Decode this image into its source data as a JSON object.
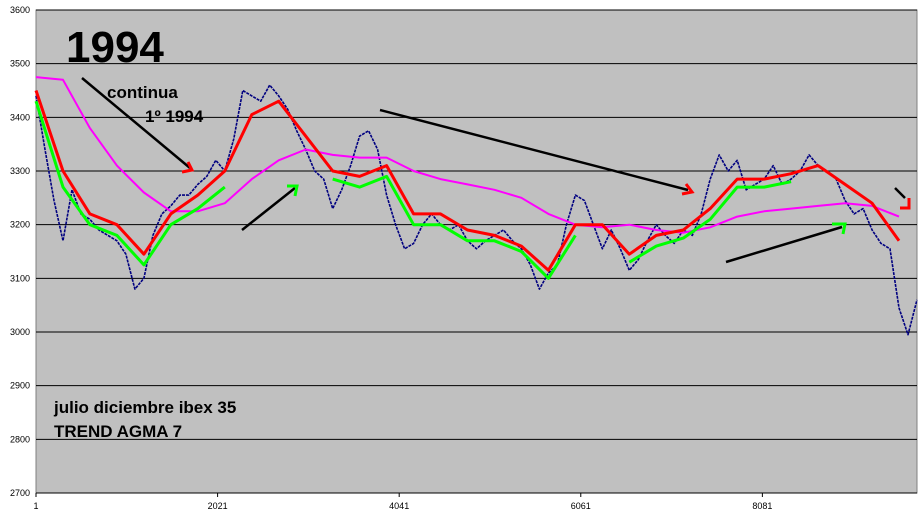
{
  "chart_data": {
    "type": "line",
    "title": "1994",
    "annotations": [
      "continua",
      "1º 1994",
      "julio diciembre ibex 35",
      "TREND AGMA 7"
    ],
    "xlim": [
      1,
      9801
    ],
    "xticks": [
      1,
      2021,
      4041,
      6061,
      8081
    ],
    "ylim": [
      2700,
      3600
    ],
    "yticks": [
      2700,
      2800,
      2900,
      3000,
      3100,
      3200,
      3300,
      3400,
      3500,
      3600
    ],
    "grid": true,
    "series": [
      {
        "color": "#000080",
        "x": [
          1,
          101,
          201,
          301,
          401,
          501,
          601,
          701,
          801,
          901,
          1001,
          1101,
          1201,
          1301,
          1401,
          1501,
          1601,
          1701,
          1801,
          1901,
          2001,
          2101,
          2201,
          2301,
          2401,
          2501,
          2601,
          2701,
          2801,
          2901,
          3001,
          3101,
          3201,
          3301,
          3401,
          3501,
          3601,
          3701,
          3801,
          3901,
          4001,
          4101,
          4201,
          4301,
          4401,
          4501,
          4601,
          4701,
          4801,
          4901,
          5001,
          5101,
          5201,
          5301,
          5401,
          5501,
          5601,
          5701,
          5801,
          5901,
          6001,
          6101,
          6201,
          6301,
          6401,
          6501,
          6601,
          6701,
          6801,
          6901,
          7001,
          7101,
          7201,
          7301,
          7401,
          7501,
          7601,
          7701,
          7801,
          7901,
          8001,
          8101,
          8201,
          8301,
          8401,
          8501,
          8601,
          8701,
          8801,
          8901,
          9001,
          9101,
          9201,
          9301,
          9401,
          9501,
          9601,
          9701,
          9801
        ],
        "values": [
          3440,
          3340,
          3245,
          3170,
          3265,
          3220,
          3210,
          3190,
          3180,
          3170,
          3145,
          3080,
          3100,
          3180,
          3220,
          3235,
          3255,
          3255,
          3275,
          3290,
          3320,
          3300,
          3360,
          3450,
          3440,
          3430,
          3460,
          3440,
          3415,
          3375,
          3340,
          3300,
          3285,
          3230,
          3265,
          3310,
          3365,
          3375,
          3340,
          3255,
          3200,
          3155,
          3165,
          3200,
          3220,
          3200,
          3190,
          3200,
          3170,
          3155,
          3170,
          3180,
          3190,
          3170,
          3155,
          3125,
          3080,
          3110,
          3125,
          3200,
          3255,
          3245,
          3200,
          3155,
          3190,
          3155,
          3115,
          3135,
          3170,
          3200,
          3180,
          3165,
          3190,
          3180,
          3220,
          3285,
          3330,
          3300,
          3320,
          3265,
          3275,
          3285,
          3310,
          3275,
          3285,
          3300,
          3330,
          3310,
          3300,
          3285,
          3245,
          3220,
          3230,
          3190,
          3165,
          3155,
          3045,
          2995,
          3060
        ]
      },
      {
        "color": "#ff00ff",
        "x": [
          1,
          301,
          601,
          901,
          1201,
          1501,
          1801,
          2101,
          2401,
          2701,
          3001,
          3301,
          3601,
          3901,
          4201,
          4501,
          4801,
          5101,
          5401,
          5701,
          6001,
          6301,
          6601,
          6901,
          7201,
          7501,
          7801,
          8101,
          8401,
          8701,
          9001,
          9301,
          9601
        ],
        "values": [
          3475,
          3470,
          3380,
          3310,
          3260,
          3225,
          3225,
          3240,
          3285,
          3320,
          3340,
          3330,
          3325,
          3325,
          3300,
          3285,
          3275,
          3265,
          3250,
          3220,
          3200,
          3195,
          3200,
          3190,
          3185,
          3195,
          3215,
          3225,
          3230,
          3235,
          3240,
          3235,
          3215
        ]
      },
      {
        "color": "#ff0000",
        "x": [
          1,
          301,
          601,
          901,
          1201,
          1501,
          1801,
          2101,
          2401,
          2701,
          3001,
          3301,
          3601,
          3901,
          4201,
          4501,
          4801,
          5101,
          5401,
          5701,
          6001,
          6301,
          6601,
          6901,
          7201,
          7501,
          7801,
          8101,
          8401,
          8701,
          9001,
          9301,
          9601
        ],
        "values": [
          3450,
          3300,
          3220,
          3200,
          3145,
          3220,
          3255,
          3300,
          3405,
          3430,
          3365,
          3300,
          3290,
          3310,
          3220,
          3220,
          3190,
          3180,
          3160,
          3115,
          3200,
          3200,
          3145,
          3180,
          3190,
          3230,
          3285,
          3285,
          3295,
          3310,
          3275,
          3240,
          3170
        ]
      },
      {
        "color": "#00ff00",
        "x": [
          1,
          301,
          601,
          901,
          1201,
          1501,
          1801,
          2101,
          2401,
          2701,
          3001,
          3301,
          3601,
          3901,
          4201,
          4501,
          4801,
          5101,
          5401,
          5701,
          6001,
          6301,
          6601,
          6901,
          7201,
          7501,
          7801,
          8101,
          8401,
          8701,
          9001,
          9301,
          9601
        ],
        "values": [
          3430,
          3270,
          3200,
          3180,
          3125,
          3200,
          3230,
          3270,
          null,
          null,
          null,
          3285,
          3270,
          3290,
          3200,
          3200,
          3170,
          3170,
          3150,
          3100,
          3180,
          null,
          3130,
          3160,
          3175,
          3210,
          3270,
          3270,
          3280,
          null,
          null,
          3210,
          null
        ]
      }
    ]
  }
}
